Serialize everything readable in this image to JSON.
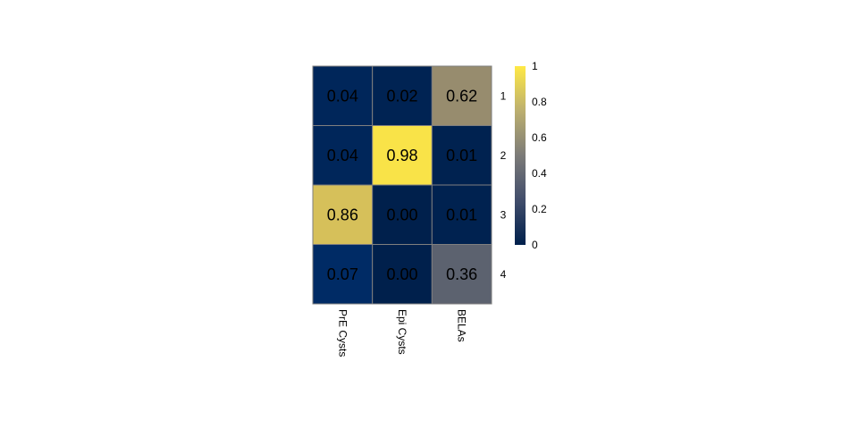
{
  "chart_data": {
    "type": "heatmap",
    "title": "",
    "x_categories": [
      "PrE Cysts",
      "Epi Cysts",
      "BELAs"
    ],
    "y_categories": [
      "1",
      "2",
      "3",
      "4"
    ],
    "values": [
      [
        0.04,
        0.02,
        0.62
      ],
      [
        0.04,
        0.98,
        0.01
      ],
      [
        0.86,
        0.0,
        0.01
      ],
      [
        0.07,
        0.0,
        0.36
      ]
    ],
    "value_labels": [
      [
        "0.04",
        "0.02",
        "0.62"
      ],
      [
        "0.04",
        "0.98",
        "0.01"
      ],
      [
        "0.86",
        "0.00",
        "0.01"
      ],
      [
        "0.07",
        "0.00",
        "0.36"
      ]
    ],
    "colorbar": {
      "range": [
        0,
        1
      ],
      "ticks": [
        "0",
        "0.2",
        "0.4",
        "0.6",
        "0.8",
        "1"
      ],
      "tick_values": [
        0,
        0.2,
        0.4,
        0.6,
        0.8,
        1
      ],
      "colormap": "cividis",
      "placement": "right"
    },
    "colors": {
      "low": "#00204c",
      "high": "#ffe945",
      "grid_line": "#7f7f7f"
    }
  }
}
